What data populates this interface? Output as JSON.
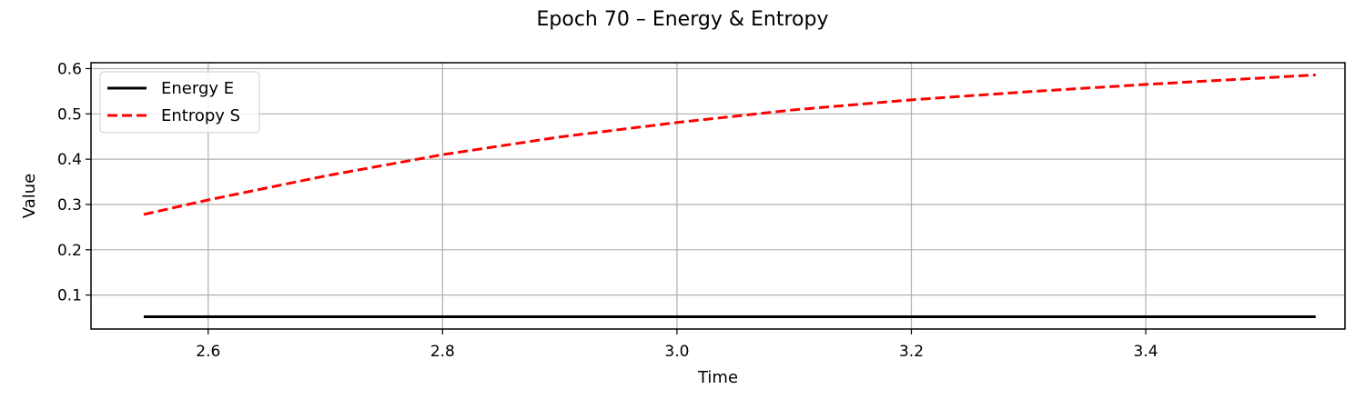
{
  "chart_data": {
    "type": "line",
    "title": "Epoch 70 – Energy & Entropy",
    "xlabel": "Time",
    "ylabel": "Value",
    "xlim": [
      2.5,
      3.57
    ],
    "ylim": [
      0.025,
      0.613
    ],
    "xticks": [
      2.6,
      2.8,
      3.0,
      3.2,
      3.4
    ],
    "xtick_labels": [
      "2.6",
      "2.8",
      "3.0",
      "3.2",
      "3.4"
    ],
    "yticks": [
      0.1,
      0.2,
      0.3,
      0.4,
      0.5,
      0.6
    ],
    "ytick_labels": [
      "0.1",
      "0.2",
      "0.3",
      "0.4",
      "0.5",
      "0.6"
    ],
    "grid": true,
    "legend_position": "top-left",
    "series": [
      {
        "name": "Energy E",
        "color": "#000000",
        "style": "solid",
        "x": [
          2.545,
          3.545
        ],
        "y": [
          0.052,
          0.052
        ]
      },
      {
        "name": "Entropy S",
        "color": "#ff0000",
        "style": "dashed",
        "x": [
          2.545,
          2.6,
          2.7,
          2.8,
          2.9,
          3.0,
          3.1,
          3.2,
          3.3,
          3.4,
          3.545
        ],
        "y": [
          0.278,
          0.31,
          0.363,
          0.41,
          0.449,
          0.481,
          0.509,
          0.531,
          0.549,
          0.565,
          0.586
        ]
      }
    ]
  }
}
